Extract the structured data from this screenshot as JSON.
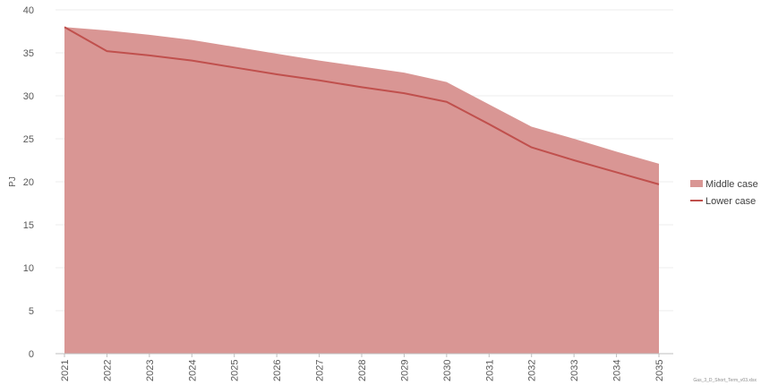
{
  "chart_data": {
    "type": "area",
    "x": [
      "2021",
      "2022",
      "2023",
      "2024",
      "2025",
      "2026",
      "2027",
      "2028",
      "2029",
      "2030",
      "2031",
      "2032",
      "2033",
      "2034",
      "2035"
    ],
    "series": [
      {
        "name": "Middle case",
        "kind": "area",
        "color": "#d99694",
        "values": [
          38.0,
          37.6,
          37.1,
          36.5,
          35.7,
          34.9,
          34.1,
          33.4,
          32.7,
          31.6,
          29.0,
          26.4,
          25.0,
          23.5,
          22.1
        ]
      },
      {
        "name": "Lower case",
        "kind": "line",
        "color": "#c0504d",
        "values": [
          38.0,
          35.2,
          34.7,
          34.1,
          33.3,
          32.5,
          31.8,
          31.0,
          30.3,
          29.3,
          26.7,
          24.0,
          22.5,
          21.1,
          19.7
        ]
      }
    ],
    "ylabel": "PJ",
    "xlabel": "",
    "title": "",
    "ylim": [
      0,
      40
    ],
    "yticks": [
      0,
      5,
      10,
      15,
      20,
      25,
      30,
      35,
      40
    ],
    "grid": "horizontal",
    "legend_position": "right",
    "footnote": "Gas_3_D_Short_Term_v03.xlsx"
  }
}
